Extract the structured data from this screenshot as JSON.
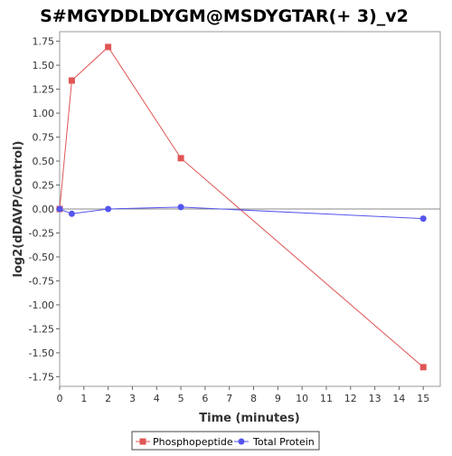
{
  "chart_data": {
    "type": "line",
    "title": "S#MGYDDLDYGM@MSDYGTAR(+ 3)_v2",
    "xlabel": "Time (minutes)",
    "ylabel": "log2(dDAVP/Control)",
    "xlim": [
      0,
      15.7
    ],
    "ylim": [
      -1.85,
      1.85
    ],
    "x_ticks": [
      "0",
      "1",
      "2",
      "3",
      "4",
      "5",
      "6",
      "7",
      "8",
      "9",
      "10",
      "11",
      "12",
      "13",
      "14",
      "15"
    ],
    "y_ticks": [
      "1.75",
      "1.50",
      "1.25",
      "1.00",
      "0.75",
      "0.50",
      "0.25",
      "0.00",
      "-0.25",
      "-0.50",
      "-0.75",
      "-1.00",
      "-1.25",
      "-1.50",
      "-1.75"
    ],
    "grid": false,
    "legend_position": "bottom",
    "series": [
      {
        "name": "Phosphopeptide",
        "color": "#e05555",
        "marker": "square",
        "points": [
          {
            "x": 0,
            "y": 0.0
          },
          {
            "x": 0.5,
            "y": 1.34
          },
          {
            "x": 2,
            "y": 1.69
          },
          {
            "x": 5,
            "y": 0.53
          },
          {
            "x": 15,
            "y": -1.65
          }
        ]
      },
      {
        "name": "Total Protein",
        "color": "#5555ee",
        "marker": "circle",
        "points": [
          {
            "x": 0,
            "y": 0.0
          },
          {
            "x": 0.5,
            "y": -0.05
          },
          {
            "x": 2,
            "y": 0.0
          },
          {
            "x": 5,
            "y": 0.02
          },
          {
            "x": 15,
            "y": -0.1
          }
        ]
      }
    ]
  }
}
